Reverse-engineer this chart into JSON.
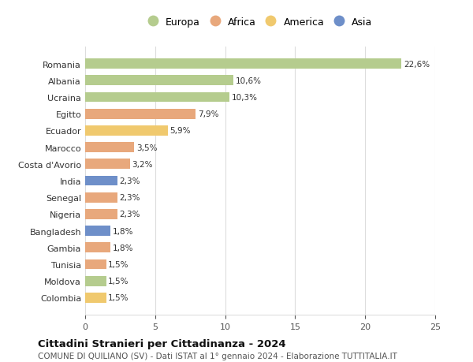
{
  "countries": [
    "Romania",
    "Albania",
    "Ucraina",
    "Egitto",
    "Ecuador",
    "Marocco",
    "Costa d'Avorio",
    "India",
    "Senegal",
    "Nigeria",
    "Bangladesh",
    "Gambia",
    "Tunisia",
    "Moldova",
    "Colombia"
  ],
  "values": [
    22.6,
    10.6,
    10.3,
    7.9,
    5.9,
    3.5,
    3.2,
    2.3,
    2.3,
    2.3,
    1.8,
    1.8,
    1.5,
    1.5,
    1.5
  ],
  "labels": [
    "22,6%",
    "10,6%",
    "10,3%",
    "7,9%",
    "5,9%",
    "3,5%",
    "3,2%",
    "2,3%",
    "2,3%",
    "2,3%",
    "1,8%",
    "1,8%",
    "1,5%",
    "1,5%",
    "1,5%"
  ],
  "continents": [
    "Europa",
    "Europa",
    "Europa",
    "Africa",
    "America",
    "Africa",
    "Africa",
    "Asia",
    "Africa",
    "Africa",
    "Asia",
    "Africa",
    "Africa",
    "Europa",
    "America"
  ],
  "colors": {
    "Europa": "#b5cc8e",
    "Africa": "#e8a87c",
    "America": "#f0c96e",
    "Asia": "#6e8fc9"
  },
  "xlim": [
    0,
    25
  ],
  "xticks": [
    0,
    5,
    10,
    15,
    20,
    25
  ],
  "title": "Cittadini Stranieri per Cittadinanza - 2024",
  "subtitle": "COMUNE DI QUILIANO (SV) - Dati ISTAT al 1° gennaio 2024 - Elaborazione TUTTITALIA.IT",
  "background_color": "#ffffff",
  "grid_color": "#dddddd",
  "legend_order": [
    "Europa",
    "Africa",
    "America",
    "Asia"
  ]
}
